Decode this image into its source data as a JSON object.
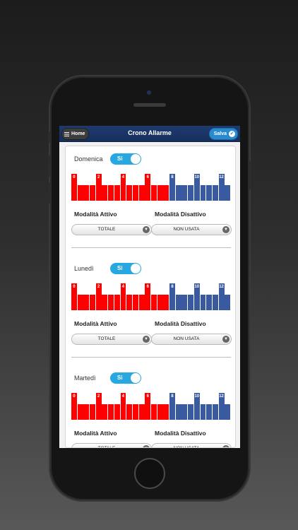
{
  "header": {
    "home_label": "Home",
    "title": "Crono Allarme",
    "save_label": "Salva"
  },
  "labels": {
    "mode_active": "Modalità Attivo",
    "mode_inactive": "Modalità Disattivo"
  },
  "colors": {
    "active_bar": "#ff0000",
    "inactive_bar": "#3a5aa0",
    "accent": "#28a8e0",
    "header": "#1e3a6e"
  },
  "days": [
    {
      "name": "Domenica",
      "toggle": "Si",
      "mode_active": "TOTALE",
      "mode_inactive": "NON USATA",
      "hour_labels": [
        "0",
        "2",
        "4",
        "6",
        "8",
        "10",
        "12"
      ],
      "levels": [
        1,
        0,
        0,
        0,
        1,
        0,
        0,
        0,
        1,
        0,
        0,
        0,
        1,
        0,
        0,
        0,
        1,
        0,
        0,
        0,
        1,
        0,
        0,
        0,
        1,
        0
      ]
    },
    {
      "name": "Lunedì",
      "toggle": "Si",
      "mode_active": "TOTALE",
      "mode_inactive": "NON USATA",
      "hour_labels": [
        "0",
        "2",
        "4",
        "6",
        "8",
        "10",
        "12"
      ],
      "levels": [
        1,
        0,
        0,
        0,
        1,
        0,
        0,
        0,
        1,
        0,
        0,
        0,
        1,
        0,
        0,
        0,
        1,
        0,
        0,
        0,
        1,
        0,
        0,
        0,
        1,
        0
      ]
    },
    {
      "name": "Martedì",
      "toggle": "Si",
      "mode_active": "TOTALE",
      "mode_inactive": "NON USATA",
      "hour_labels": [
        "0",
        "2",
        "4",
        "6",
        "8",
        "10",
        "12"
      ],
      "levels": [
        1,
        0,
        0,
        0,
        1,
        0,
        0,
        0,
        1,
        0,
        0,
        0,
        1,
        0,
        0,
        0,
        1,
        0,
        0,
        0,
        1,
        0,
        0,
        0,
        1,
        0
      ]
    }
  ]
}
